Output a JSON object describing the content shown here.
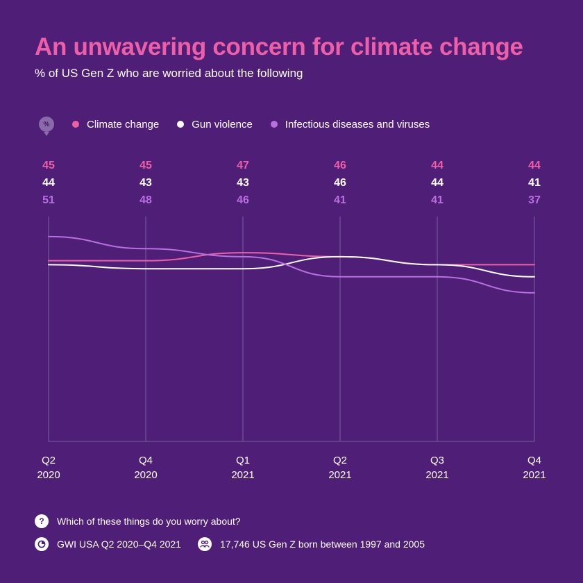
{
  "title": "An unwavering concern for climate change",
  "subtitle": "% of US Gen Z who are worried about the following",
  "legend": {
    "unit_badge": "%",
    "items": [
      "Climate change",
      "Gun violence",
      "Infectious diseases and viruses"
    ]
  },
  "colors": {
    "background": "#4f1f78",
    "climate": "#ef5fa7",
    "gun": "#ffffff",
    "infectious": "#b86fe0",
    "gridline": "#6e4a93"
  },
  "chart_data": {
    "type": "line",
    "title": "An unwavering concern for climate change",
    "subtitle": "% of US Gen Z who are worried about the following",
    "categories": [
      {
        "quarter": "Q2",
        "year": "2020"
      },
      {
        "quarter": "Q4",
        "year": "2020"
      },
      {
        "quarter": "Q1",
        "year": "2021"
      },
      {
        "quarter": "Q2",
        "year": "2021"
      },
      {
        "quarter": "Q3",
        "year": "2021"
      },
      {
        "quarter": "Q4",
        "year": "2021"
      }
    ],
    "series": [
      {
        "name": "Climate change",
        "values": [
          45,
          45,
          47,
          46,
          44,
          44
        ]
      },
      {
        "name": "Gun violence",
        "values": [
          44,
          43,
          43,
          46,
          44,
          41
        ]
      },
      {
        "name": "Infectious diseases and viruses",
        "values": [
          51,
          48,
          46,
          41,
          41,
          37
        ]
      }
    ],
    "ylim": [
      0,
      56
    ],
    "xlabel": "",
    "ylabel": "%",
    "grid": true,
    "legend": "top-left"
  },
  "footer": {
    "question": "Which of these things do you worry about?",
    "source": "GWI USA Q2 2020–Q4 2021",
    "sample": "17,746 US Gen Z born between 1997 and 2005"
  }
}
